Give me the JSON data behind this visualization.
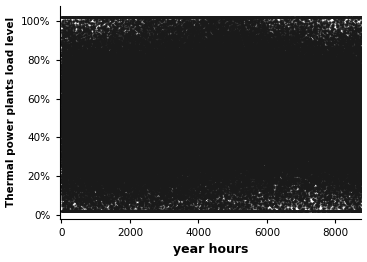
{
  "xlabel": "year hours",
  "ylabel": "Thermal power plants load level",
  "xlim": [
    -50,
    8760
  ],
  "ylim": [
    -0.02,
    1.08
  ],
  "yticks": [
    0,
    0.2,
    0.4,
    0.6,
    0.8,
    1.0
  ],
  "ytick_labels": [
    "0%",
    "20%",
    "40%",
    "60%",
    "80%",
    "100%"
  ],
  "xticks": [
    0,
    2000,
    4000,
    6000,
    8000
  ],
  "dot_color": "#1a1a1a",
  "dot_size": 2.5,
  "dot_alpha": 0.85,
  "num_plants": 20,
  "hours_per_year": 8760,
  "random_seed": 7
}
